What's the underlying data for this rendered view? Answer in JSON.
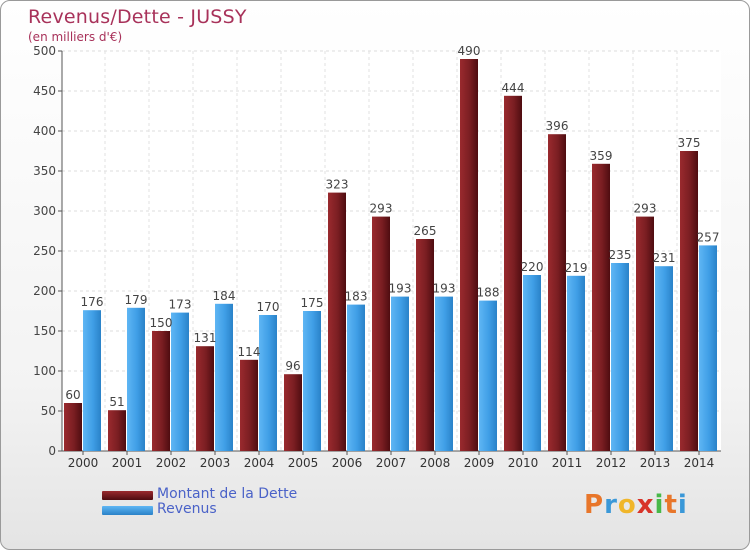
{
  "title": "Revenus/Dette - JUSSY",
  "subtitle": "(en milliers d'€)",
  "logo": {
    "text": "Proxiti",
    "colors": [
      "#e8762a",
      "#3a98d8",
      "#f0b62a",
      "#d8342a",
      "#48b848",
      "#e8762a",
      "#3a98d8"
    ]
  },
  "chart_data": {
    "type": "bar",
    "title": "Revenus/Dette - JUSSY",
    "subtitle": "(en milliers d'€)",
    "categories": [
      "2000",
      "2001",
      "2002",
      "2003",
      "2004",
      "2005",
      "2006",
      "2007",
      "2008",
      "2009",
      "2010",
      "2011",
      "2012",
      "2013",
      "2014"
    ],
    "series": [
      {
        "name": "Montant de la Dette",
        "color": "#7a1e22",
        "values": [
          60,
          51,
          150,
          131,
          114,
          96,
          323,
          293,
          265,
          490,
          444,
          396,
          359,
          293,
          375
        ]
      },
      {
        "name": "Revenus",
        "color": "#3f9ee6",
        "values": [
          176,
          179,
          173,
          184,
          170,
          175,
          183,
          193,
          193,
          188,
          220,
          219,
          235,
          231,
          257
        ]
      }
    ],
    "ylim": [
      0,
      500
    ],
    "yticks": [
      0,
      50,
      100,
      150,
      200,
      250,
      300,
      350,
      400,
      450,
      500
    ],
    "grid": true,
    "legend_position": "bottom-left"
  }
}
